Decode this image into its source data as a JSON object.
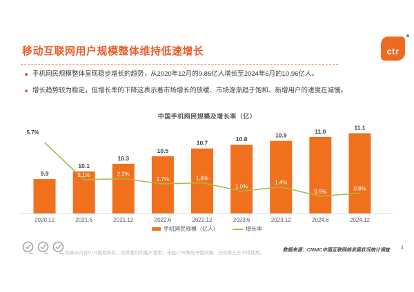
{
  "header": {
    "title": "移动互联网用户规模整体维持低速增长",
    "logo_text": "ctr"
  },
  "bullets": [
    "手机网民规模整体呈现稳步增长的趋势，从2020年12月的9.86亿人增长至2024年6月的10.96亿人。",
    "增长趋势较为稳定，但增长率的下降这表示着市场增长的放缓、市场逐渐趋于饱和、新增用户的速度在减慢。"
  ],
  "chart_data": {
    "type": "bar",
    "title": "中国手机网民规模及增长率（亿）",
    "categories": [
      "2020.12",
      "2021.6",
      "2021.12",
      "2022.6",
      "2022.12",
      "2023.6",
      "2023.12",
      "2024.6",
      "2024.12"
    ],
    "series": [
      {
        "name": "手机网民规模（亿人）",
        "type": "bar",
        "values": [
          9.9,
          10.1,
          10.3,
          10.5,
          10.7,
          10.8,
          10.9,
          11.0,
          11.1
        ]
      },
      {
        "name": "增长率",
        "type": "line",
        "unit": "%",
        "values": [
          5.7,
          2.1,
          2.2,
          1.7,
          1.8,
          1.0,
          1.4,
          0.5,
          0.8
        ]
      }
    ],
    "bar_axis_range": [
      9.0,
      11.6
    ],
    "line_axis_range": [
      0,
      6.8
    ],
    "legend_position": "bottom",
    "grid": "off",
    "colors": {
      "bar": "#F0701E",
      "line": "#A6BB45",
      "bar_label": "#3F3F3F",
      "pct_label_inside": "#FFFFFF",
      "axis": "#DCDCDC",
      "tick_label": "#595959"
    }
  },
  "footer": {
    "disclaimer": "所展示内容CTR版权所有，仅供我们的客户使用；未经CTR事先书面同意，任何第三方不得使用。",
    "data_source": "数据来源：CNNIC中国互联网络发展状况统计调查",
    "page_number": "4"
  },
  "brand": {
    "accent_orange": "#E8602C",
    "logo_dot_teal": "#2E9E8F"
  }
}
